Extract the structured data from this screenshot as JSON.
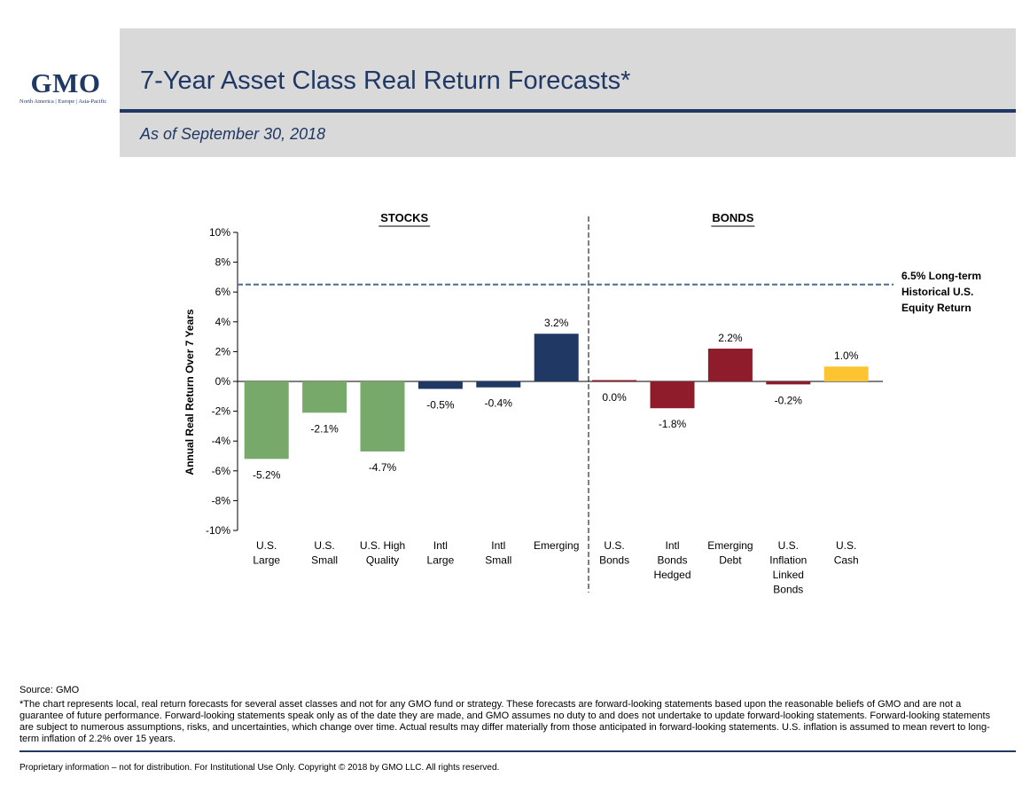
{
  "logo": {
    "word": "GMO",
    "tagline": "North America | Europe | Asia-Pacific"
  },
  "header": {
    "title": "7-Year Asset Class Real Return Forecasts*",
    "subtitle": "As of September 30, 2018"
  },
  "colors": {
    "brand_navy": "#1f3864",
    "header_gray": "#d9d9d9",
    "stocks_green": "#77a96a",
    "navy_bar": "#1f3864",
    "bonds_red": "#8e1c2b",
    "cash_gold": "#fcc432",
    "reference_line": "#4a6d96"
  },
  "chart_data": {
    "type": "bar",
    "ylabel": "Annual Real Return Over 7 Years",
    "ylim": [
      -10,
      10
    ],
    "yticks": [
      "10%",
      "8%",
      "6%",
      "4%",
      "2%",
      "0%",
      "-2%",
      "-4%",
      "-6%",
      "-8%",
      "-10%"
    ],
    "ytick_values": [
      10,
      8,
      6,
      4,
      2,
      0,
      -2,
      -4,
      -6,
      -8,
      -10
    ],
    "groups": [
      {
        "name": "STOCKS",
        "categories": [
          0,
          1,
          2,
          3,
          4,
          5
        ]
      },
      {
        "name": "BONDS",
        "categories": [
          6,
          7,
          8,
          9,
          10
        ]
      }
    ],
    "categories": [
      [
        "U.S.",
        "Large"
      ],
      [
        "U.S.",
        "Small"
      ],
      [
        "U.S. High",
        "Quality"
      ],
      [
        "Intl",
        "Large"
      ],
      [
        "Intl",
        "Small"
      ],
      [
        "Emerging"
      ],
      [
        "U.S.",
        "Bonds"
      ],
      [
        "Intl",
        "Bonds",
        "Hedged"
      ],
      [
        "Emerging",
        "Debt"
      ],
      [
        "U.S.",
        "Inflation",
        "Linked",
        "Bonds"
      ],
      [
        "U.S.",
        "Cash"
      ]
    ],
    "values": [
      -5.2,
      -2.1,
      -4.7,
      -0.5,
      -0.4,
      3.2,
      0.0,
      -1.8,
      2.2,
      -0.2,
      1.0
    ],
    "labels": [
      "-5.2%",
      "-2.1%",
      "-4.7%",
      "-0.5%",
      "-0.4%",
      "3.2%",
      "0.0%",
      "-1.8%",
      "2.2%",
      "-0.2%",
      "1.0%"
    ],
    "bar_colors": [
      "#77a96a",
      "#77a96a",
      "#77a96a",
      "#1f3864",
      "#1f3864",
      "#1f3864",
      "#8e1c2b",
      "#8e1c2b",
      "#8e1c2b",
      "#8e1c2b",
      "#fcc432"
    ],
    "reference_line": {
      "value": 6.5,
      "label": [
        "6.5% Long-term",
        "Historical U.S.",
        "Equity Return"
      ]
    },
    "grid": false
  },
  "footer": {
    "source": "Source: GMO",
    "note": "*The chart represents local, real return forecasts for several asset classes and not for any GMO fund or strategy.  These forecasts are forward-looking statements based upon the reasonable beliefs of GMO and are not a guarantee of future performance.  Forward-looking statements speak only as of the date they are made, and GMO assumes no duty to and does not undertake to update forward-looking statements.  Forward-looking statements are subject to numerous assumptions, risks, and uncertainties, which change over time.  Actual results may differ materially from those anticipated in forward-looking statements. U.S. inflation is assumed to mean revert to long-term inflation of 2.2% over 15 years.",
    "legal": "Proprietary information – not for distribution. For Institutional Use Only. Copyright © 2018 by GMO LLC.  All rights reserved."
  }
}
